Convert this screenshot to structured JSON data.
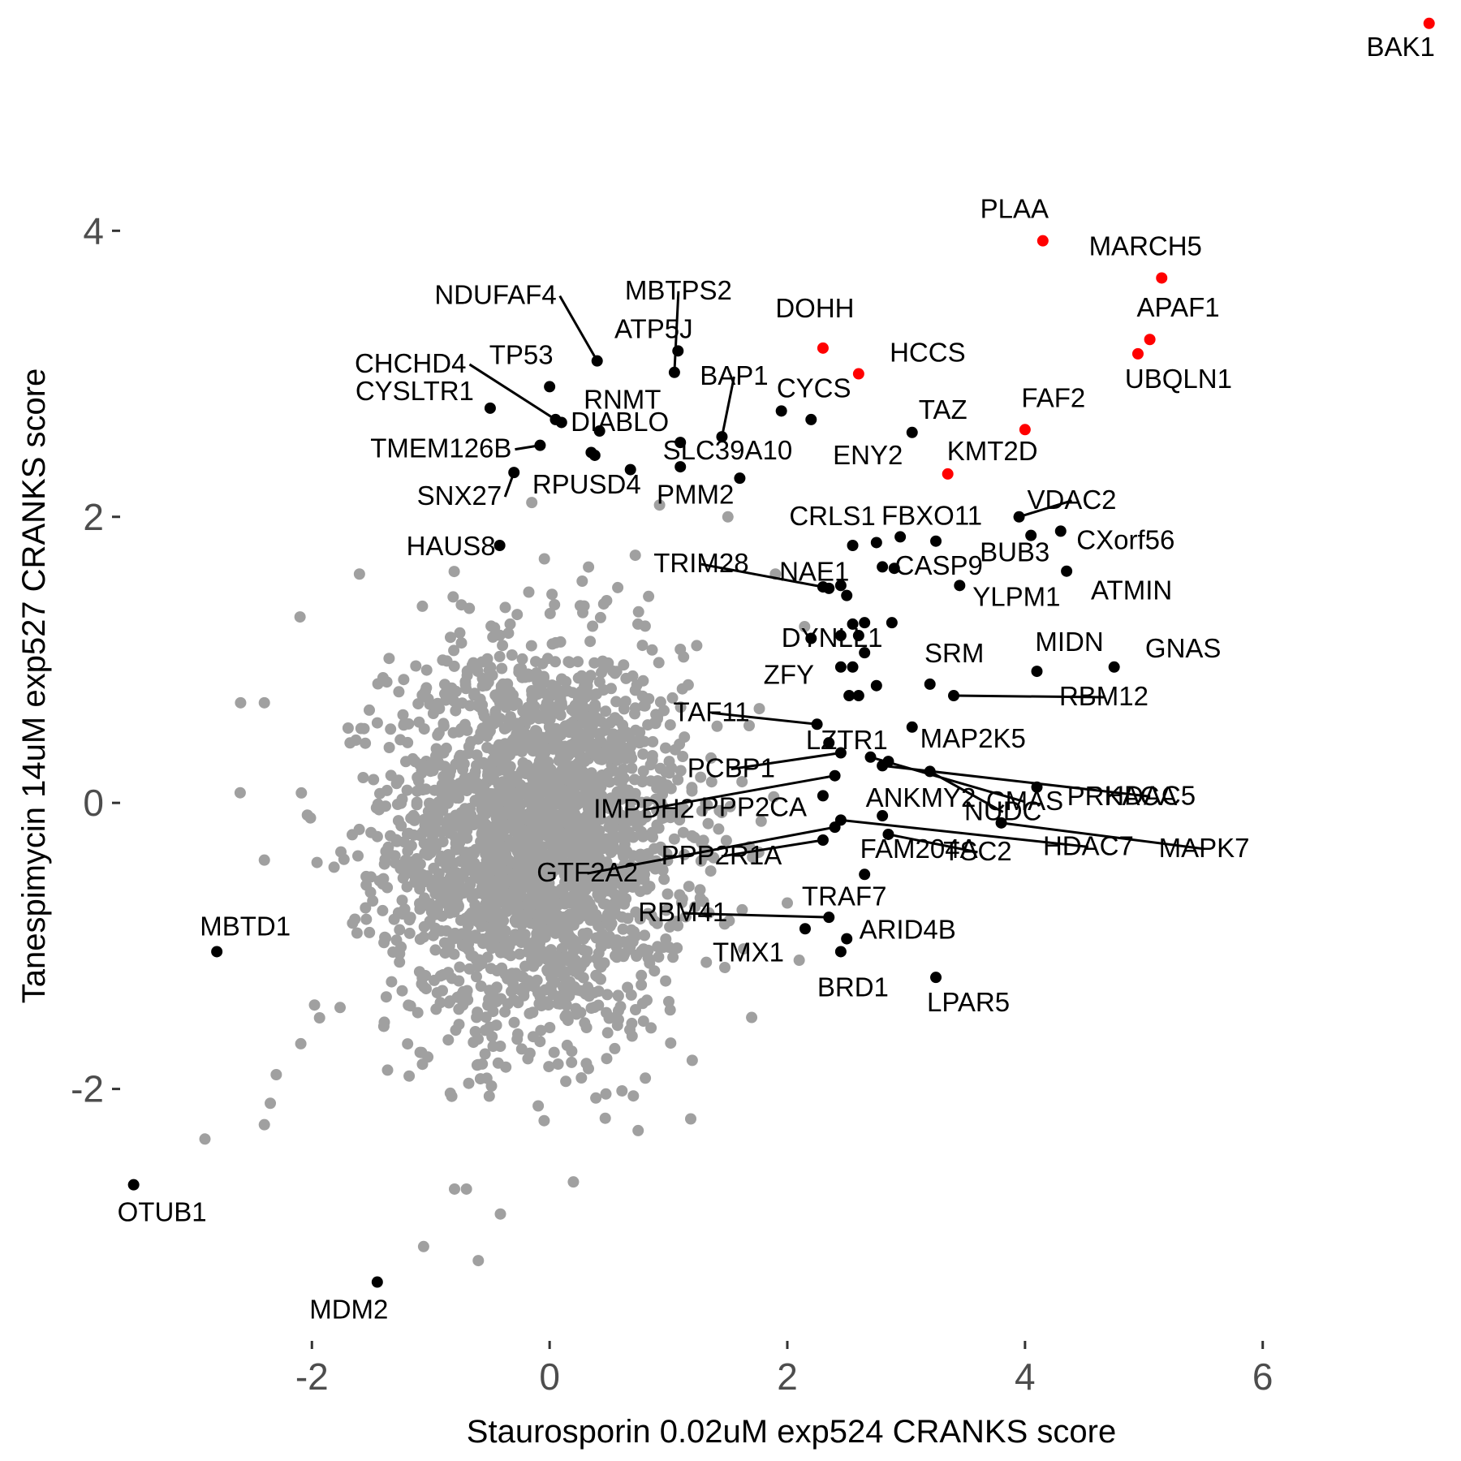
{
  "chart_data": {
    "type": "scatter",
    "title": "",
    "xlabel": "Staurosporin 0.02uM exp524 CRANKS score",
    "ylabel": "Tanespimycin 14uM exp527 CRANKS score",
    "xlim": [
      -3.6,
      7.6
    ],
    "ylim": [
      -3.75,
      5.5
    ],
    "xticks": [
      -2,
      0,
      2,
      4,
      6
    ],
    "yticks": [
      -2,
      0,
      2,
      4
    ],
    "x_tick_labels": [
      "-2",
      "0",
      "2",
      "4",
      "6"
    ],
    "y_tick_labels": [
      "-2",
      "0",
      "2",
      "4"
    ],
    "grid": false,
    "legend": "none",
    "colors": {
      "background": "#4d4d4d",
      "highlight": "#ff0000",
      "labeled": "#000000"
    },
    "background_cloud": {
      "n": 2500,
      "x_mean": -0.1,
      "x_sd": 0.62,
      "y_mean": -0.25,
      "y_sd": 0.68,
      "color": "#a0a0a0"
    },
    "outlier_background_points": [
      [
        -2.6,
        0.7
      ],
      [
        -2.4,
        0.7
      ],
      [
        -2.4,
        -0.4
      ],
      [
        -2.35,
        -2.1
      ],
      [
        -2.4,
        -2.25
      ],
      [
        -2.9,
        -2.35
      ],
      [
        -2.3,
        -1.9
      ],
      [
        -0.6,
        -3.2
      ],
      [
        -0.8,
        -2.7
      ],
      [
        -0.7,
        -2.7
      ],
      [
        0.2,
        -2.65
      ],
      [
        -2.1,
        1.3
      ],
      [
        -1.6,
        1.6
      ],
      [
        -0.15,
        2.1
      ],
      [
        2.1,
        -1.1
      ],
      [
        1.7,
        -1.5
      ],
      [
        1.2,
        -1.8
      ],
      [
        2.0,
        -0.7
      ],
      [
        1.9,
        1.6
      ],
      [
        1.5,
        2.0
      ]
    ],
    "highlighted_genes": [
      {
        "label": "BAK1",
        "x": 7.4,
        "y": 5.45
      },
      {
        "label": "PLAA",
        "x": 4.15,
        "y": 3.93
      },
      {
        "label": "MARCH5",
        "x": 5.15,
        "y": 3.67
      },
      {
        "label": "APAF1",
        "x": 5.05,
        "y": 3.24
      },
      {
        "label": "UBQLN1",
        "x": 4.95,
        "y": 3.14
      },
      {
        "label": "DOHH",
        "x": 2.3,
        "y": 3.18
      },
      {
        "label": "HCCS",
        "x": 2.6,
        "y": 3.0
      },
      {
        "label": "FAF2",
        "x": 4.0,
        "y": 2.61
      },
      {
        "label": "KMT2D",
        "x": 3.35,
        "y": 2.3
      }
    ],
    "labeled_genes": [
      {
        "label": "NDUFAF4",
        "x": 0.4,
        "y": 3.09
      },
      {
        "label": "ATP5J",
        "x": 1.08,
        "y": 3.16
      },
      {
        "label": "MBTPS2",
        "x": 1.05,
        "y": 3.01
      },
      {
        "label": "TP53",
        "x": 0.0,
        "y": 2.91
      },
      {
        "label": "CHCHD4",
        "x": 0.05,
        "y": 2.68
      },
      {
        "label": "CYSLTR1",
        "x": -0.5,
        "y": 2.76
      },
      {
        "label": "RNMT",
        "x": 0.1,
        "y": 2.66
      },
      {
        "label": "BAP1",
        "x": 1.45,
        "y": 2.56
      },
      {
        "label": "CYCS",
        "x": 1.95,
        "y": 2.74
      },
      {
        "label": "TMEM126B",
        "x": -0.08,
        "y": 2.5
      },
      {
        "label": "DIABLO",
        "x": 0.42,
        "y": 2.6
      },
      {
        "label": "SLC39A10",
        "x": 1.6,
        "y": 2.27
      },
      {
        "label": "ENY2",
        "x": 2.2,
        "y": 2.68
      },
      {
        "label": "TAZ",
        "x": 3.05,
        "y": 2.59
      },
      {
        "label": "SNX27",
        "x": -0.3,
        "y": 2.31
      },
      {
        "label": "RPUSD4",
        "x": 0.38,
        "y": 2.43
      },
      {
        "label": "PMM2",
        "x": 0.68,
        "y": 2.33
      },
      {
        "label": "HAUS8",
        "x": -0.42,
        "y": 1.8
      },
      {
        "label": "CRLS1",
        "x": 2.55,
        "y": 1.8
      },
      {
        "label": "FBXO11",
        "x": 3.25,
        "y": 1.83
      },
      {
        "label": "VDAC2",
        "x": 3.95,
        "y": 2.0
      },
      {
        "label": "CXorf56",
        "x": 4.3,
        "y": 1.9
      },
      {
        "label": "CASP9",
        "x": 2.9,
        "y": 1.64
      },
      {
        "label": "BUB3",
        "x": 4.05,
        "y": 1.87
      },
      {
        "label": "ATMIN",
        "x": 4.35,
        "y": 1.62
      },
      {
        "label": "TRIM28",
        "x": 2.3,
        "y": 1.51
      },
      {
        "label": "NAE1",
        "x": 2.5,
        "y": 1.45
      },
      {
        "label": "YLPM1",
        "x": 3.45,
        "y": 1.52
      },
      {
        "label": "DYNLL1",
        "x": 2.65,
        "y": 1.26
      },
      {
        "label": "MIDN",
        "x": 4.1,
        "y": 0.92
      },
      {
        "label": "GNAS",
        "x": 4.75,
        "y": 0.95
      },
      {
        "label": "SRM",
        "x": 3.2,
        "y": 0.83
      },
      {
        "label": "RBM12",
        "x": 3.4,
        "y": 0.75
      },
      {
        "label": "ZFY",
        "x": 2.75,
        "y": 0.82
      },
      {
        "label": "TAF11",
        "x": 2.25,
        "y": 0.55
      },
      {
        "label": "LZTR1",
        "x": 2.35,
        "y": 0.42
      },
      {
        "label": "MAP2K5",
        "x": 3.05,
        "y": 0.53
      },
      {
        "label": "CMAS",
        "x": 2.7,
        "y": 0.32
      },
      {
        "label": "HDAC5",
        "x": 2.8,
        "y": 0.26
      },
      {
        "label": "PCBP1",
        "x": 2.45,
        "y": 0.35
      },
      {
        "label": "ANKMY2",
        "x": 2.85,
        "y": 0.29
      },
      {
        "label": "NUDC",
        "x": 3.2,
        "y": 0.22
      },
      {
        "label": "PRKACA",
        "x": 4.1,
        "y": 0.11
      },
      {
        "label": "IMPDH2",
        "x": 2.4,
        "y": 0.19
      },
      {
        "label": "PPP2CA",
        "x": 2.3,
        "y": 0.05
      },
      {
        "label": "GTF2A2",
        "x": 2.4,
        "y": -0.17
      },
      {
        "label": "FAM204A",
        "x": 2.8,
        "y": -0.09
      },
      {
        "label": "HDAC7",
        "x": 2.45,
        "y": -0.12
      },
      {
        "label": "MAPK7",
        "x": 3.8,
        "y": -0.14
      },
      {
        "label": "PPP2R1A",
        "x": 2.3,
        "y": -0.26
      },
      {
        "label": "TRAF7",
        "x": 2.65,
        "y": -0.5
      },
      {
        "label": "TSC2",
        "x": 2.85,
        "y": -0.22
      },
      {
        "label": "RBM41",
        "x": 2.35,
        "y": -0.8
      },
      {
        "label": "TMX1",
        "x": 2.15,
        "y": -0.88
      },
      {
        "label": "ARID4B",
        "x": 2.5,
        "y": -0.95
      },
      {
        "label": "BRD1",
        "x": 2.45,
        "y": -1.04
      },
      {
        "label": "LPAR5",
        "x": 3.25,
        "y": -1.22
      },
      {
        "label": "MBTD1",
        "x": -2.8,
        "y": -1.04
      },
      {
        "label": "OTUB1",
        "x": -3.5,
        "y": -2.67
      },
      {
        "label": "MDM2",
        "x": -1.45,
        "y": -3.35
      }
    ],
    "unlabeled_genes": [
      [
        2.45,
        1.17
      ],
      [
        2.6,
        1.17
      ],
      [
        2.65,
        1.05
      ],
      [
        2.55,
        0.95
      ],
      [
        2.45,
        0.95
      ],
      [
        2.2,
        1.15
      ],
      [
        2.55,
        1.25
      ],
      [
        2.8,
        1.65
      ],
      [
        2.75,
        1.82
      ],
      [
        2.95,
        1.86
      ],
      [
        2.88,
        1.26
      ],
      [
        2.6,
        0.75
      ],
      [
        2.52,
        0.75
      ],
      [
        1.1,
        2.35
      ],
      [
        1.1,
        2.52
      ],
      [
        0.35,
        2.45
      ],
      [
        2.35,
        1.5
      ],
      [
        2.45,
        1.52
      ]
    ]
  }
}
